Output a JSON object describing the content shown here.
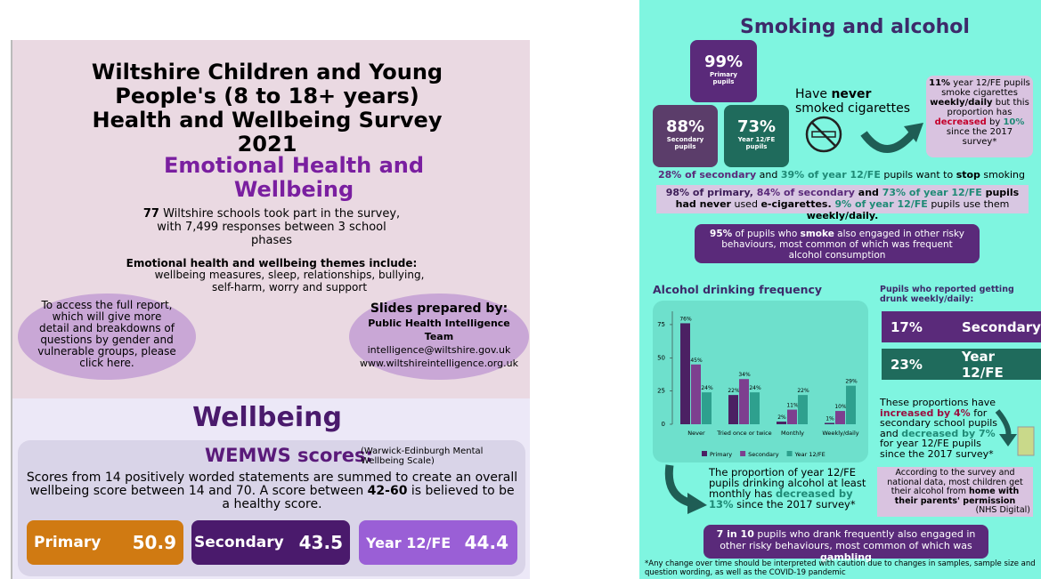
{
  "left": {
    "title": "Wiltshire Children and Young People's (8 to 18+ years) Health and Wellbeing Survey 2021",
    "section": "Emotional Health and Wellbeing",
    "intro": [
      "77",
      " Wiltshire schools took part in the survey, with 7,499 responses between 3 school phases"
    ],
    "themes_heading": "Emotional health and wellbeing themes include:",
    "themes": "wellbeing measures, sleep, relationships, bullying, self-harm, worry and support",
    "report_link": "To access the full report, which will give more detail and breakdowns of questions by gender and vulnerable groups, please click here.",
    "prepared_heading": "Slides prepared by:",
    "prepared_team": "Public Health Intelligence Team",
    "email": "intelligence@wiltshire.gov.uk",
    "website": "www.wiltshireintelligence.org.uk",
    "wellbeing_heading": "Wellbeing",
    "wemwbs_heading": "WEMWS scores:",
    "wemwbs_note": "(Warwick-Edinburgh Mental Wellbeing Scale)",
    "wemwbs_text": [
      "Scores from 14 positively worded statements are summed to create an overall wellbeing score between 14 and 70. A score between ",
      "42-60",
      " is believed to be a healthy score."
    ],
    "scores": [
      {
        "group": "Primary",
        "score": 50.9
      },
      {
        "group": "Secondary",
        "score": 43.5
      },
      {
        "group": "Year 12/FE",
        "score": 44.4
      }
    ]
  },
  "right": {
    "title": "Smoking and alcohol",
    "never_smoked": [
      {
        "pct": "99%",
        "group": "Primary pupils"
      },
      {
        "pct": "88%",
        "group": "Secondary pupils"
      },
      {
        "pct": "73%",
        "group": "Year 12/FE pupils"
      }
    ],
    "never_heading": [
      "Have ",
      "never",
      " smoked cigarettes"
    ],
    "cig_trend": [
      "11%",
      " year 12/FE pupils smoke cigarettes ",
      "weekly/daily",
      " but this proportion has ",
      "decreased",
      " by ",
      "10%",
      " since the 2017 survey*"
    ],
    "stop_smoking": [
      "28% of secondary",
      " and ",
      "39% of year 12/FE",
      " pupils want to ",
      "stop",
      " smoking"
    ],
    "ecig": [
      "98% of primary, ",
      "84% of secondary",
      " and ",
      "73% of year 12/FE",
      " pupils had ",
      "never",
      " used ",
      "e-cigarettes.",
      " 9% of ",
      "year 12/FE",
      " pupils use them ",
      "weekly/daily."
    ],
    "risky_smoke": [
      "95%",
      " of pupils who ",
      "smoke",
      " also engaged in other risky behaviours, most common of which was frequent alcohol consumption"
    ],
    "drunk_heading": "Pupils who reported getting drunk weekly/daily:",
    "drunk": [
      {
        "pct": "17%",
        "group": "Secondary"
      },
      {
        "pct": "23%",
        "group": "Year 12/FE"
      }
    ],
    "drunk_trend": [
      "These proportions have ",
      "increased by 4%",
      " for secondary school pupils and ",
      "decreased by 7%",
      " for year 12/FE pupils since the 2017 survey*"
    ],
    "monthly_trend": [
      "The proportion of year 12/FE pupils drinking alcohol at least monthly has ",
      "decreased by 13%",
      " since the 2017 survey*"
    ],
    "source": [
      "According to the survey and national data, most children get their alcohol from ",
      "home with their parents' permission"
    ],
    "source_note": "(NHS Digital)",
    "gambling": [
      "7 in 10",
      " pupils who drank frequently also engaged in other risky behaviours, most common of which was ",
      "gambling"
    ],
    "footnote": "*Any change over time should be interpreted with caution due to changes in samples, sample size and question wording, as well as the COVID-19 pandemic"
  },
  "chart_data": {
    "type": "bar",
    "title": "Alcohol drinking frequency",
    "categories": [
      "Never",
      "Tried once or twice",
      "Monthly",
      "Weekly/daily"
    ],
    "series": [
      {
        "name": "Primary",
        "color": "#4b2163",
        "values": [
          76,
          22,
          2,
          1
        ],
        "value_labels": [
          "76%",
          "22%",
          "2%",
          "1%"
        ]
      },
      {
        "name": "Secondary",
        "color": "#7d3f8f",
        "values": [
          45,
          34,
          11,
          10
        ],
        "value_labels": [
          "45%",
          "34%",
          "11%",
          "10%"
        ]
      },
      {
        "name": "Year 12/FE",
        "color": "#2ea08e",
        "values": [
          24,
          24,
          22,
          29
        ],
        "value_labels": [
          "24%",
          "24%",
          "22%",
          "29%"
        ]
      }
    ],
    "ylim": [
      0,
      85
    ],
    "yticks": [
      0,
      25,
      50,
      75
    ],
    "legend": "bottom"
  }
}
